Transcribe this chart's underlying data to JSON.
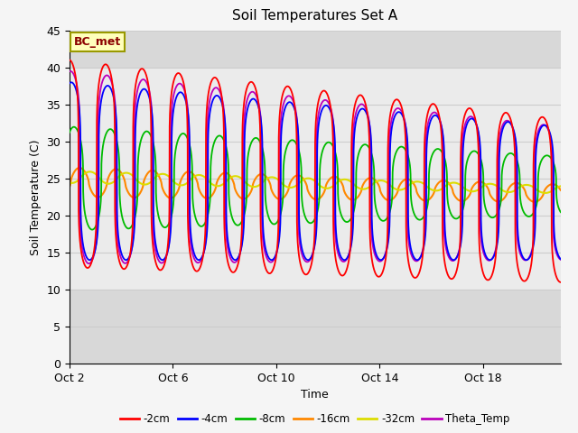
{
  "title": "Soil Temperatures Set A",
  "xlabel": "Time",
  "ylabel": "Soil Temperature (C)",
  "ylim": [
    0,
    45
  ],
  "x_tick_labels": [
    "Oct 2",
    "Oct 6",
    "Oct 10",
    "Oct 14",
    "Oct 18"
  ],
  "x_ticks_pos": [
    0,
    4,
    8,
    12,
    16
  ],
  "annotation_text": "BC_met",
  "series_colors": {
    "-2cm": "#ff0000",
    "-4cm": "#0000ff",
    "-8cm": "#00bb00",
    "-16cm": "#ff8800",
    "-32cm": "#dddd00",
    "Theta_Temp": "#bb00bb"
  },
  "legend_labels": [
    "-2cm",
    "-4cm",
    "-8cm",
    "-16cm",
    "-32cm",
    "Theta_Temp"
  ],
  "plot_bg_color": "#ebebeb",
  "inner_bg_color": "#e0e0e0",
  "grid_color": "#d8d8d8"
}
